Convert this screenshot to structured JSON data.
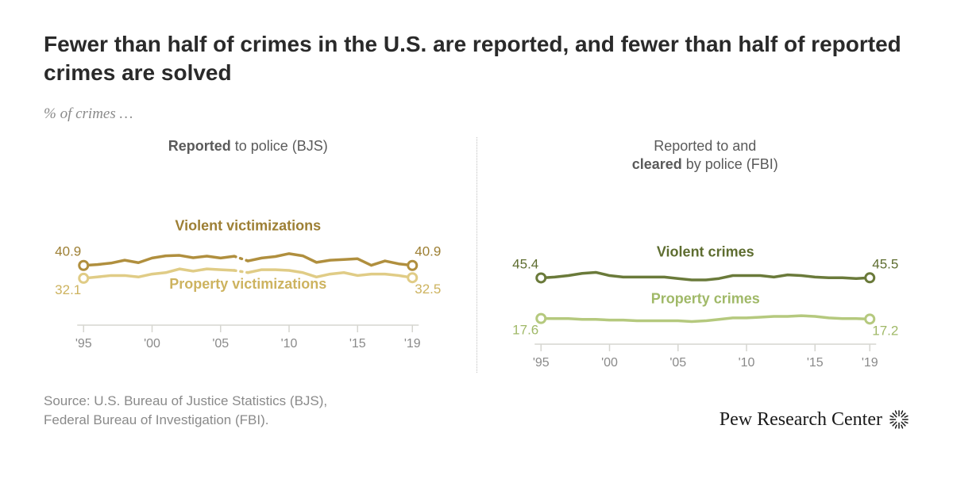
{
  "title": "Fewer than half of crimes in the U.S. are reported, and fewer than half of reported crimes are solved",
  "subtitle": "% of crimes …",
  "source_line1": "Source: U.S. Bureau of Justice Statistics (BJS),",
  "source_line2": "Federal Bureau of Investigation (FBI).",
  "brand": "Pew Research Center",
  "chart": {
    "xmin": 1995,
    "xmax": 2019,
    "ymin": 0,
    "ymax": 100,
    "x_ticks": [
      1995,
      2000,
      2005,
      2010,
      2015,
      2019
    ],
    "x_tick_labels": [
      "'95",
      "'00",
      "'05",
      "'10",
      "'15",
      "'19"
    ],
    "axis_color": "#d6d6d0",
    "tick_label_color": "#8a8a8a",
    "label_fontsize": 16
  },
  "left": {
    "panel_title_pre": "",
    "panel_title_bold": "Reported",
    "panel_title_post": " to police (BJS)",
    "series": [
      {
        "name": "Violent victimizations",
        "color": "#b08f3e",
        "text_color": "#9d7f34",
        "gap": [
          2006,
          2007
        ],
        "values": [
          [
            1995,
            40.9
          ],
          [
            1996,
            41.5
          ],
          [
            1997,
            42.5
          ],
          [
            1998,
            44.5
          ],
          [
            1999,
            42.8
          ],
          [
            2000,
            46.0
          ],
          [
            2001,
            47.5
          ],
          [
            2002,
            47.8
          ],
          [
            2003,
            46.2
          ],
          [
            2004,
            47.3
          ],
          [
            2005,
            46.0
          ],
          [
            2006,
            47.2
          ],
          [
            2007,
            44.0
          ],
          [
            2008,
            46.0
          ],
          [
            2009,
            47.0
          ],
          [
            2010,
            49.0
          ],
          [
            2011,
            47.5
          ],
          [
            2012,
            43.0
          ],
          [
            2013,
            44.5
          ],
          [
            2014,
            45.0
          ],
          [
            2015,
            45.5
          ],
          [
            2016,
            41.0
          ],
          [
            2017,
            44.0
          ],
          [
            2018,
            42.0
          ],
          [
            2019,
            40.9
          ]
        ],
        "start_label": "40.9",
        "end_label": "40.9",
        "label_y": 65
      },
      {
        "name": "Property victimizations",
        "color": "#e0cc86",
        "text_color": "#cdb35f",
        "gap": [
          2006,
          2007
        ],
        "values": [
          [
            1995,
            32.1
          ],
          [
            1996,
            33.0
          ],
          [
            1997,
            34.0
          ],
          [
            1998,
            34.0
          ],
          [
            1999,
            33.0
          ],
          [
            2000,
            35.0
          ],
          [
            2001,
            36.0
          ],
          [
            2002,
            38.5
          ],
          [
            2003,
            37.0
          ],
          [
            2004,
            38.5
          ],
          [
            2005,
            38.0
          ],
          [
            2006,
            37.5
          ],
          [
            2007,
            36.0
          ],
          [
            2008,
            38.0
          ],
          [
            2009,
            38.0
          ],
          [
            2010,
            37.5
          ],
          [
            2011,
            36.0
          ],
          [
            2012,
            33.0
          ],
          [
            2013,
            35.0
          ],
          [
            2014,
            36.0
          ],
          [
            2015,
            34.0
          ],
          [
            2016,
            35.0
          ],
          [
            2017,
            35.0
          ],
          [
            2018,
            34.0
          ],
          [
            2019,
            32.5
          ]
        ],
        "start_label": "32.1",
        "end_label": "32.5",
        "label_y": 25
      }
    ]
  },
  "right": {
    "panel_title_line1": "Reported to and",
    "panel_title_bold": "cleared",
    "panel_title_post": " by police (FBI)",
    "series": [
      {
        "name": "Violent crimes",
        "color": "#6a7a3a",
        "text_color": "#5e6d30",
        "values": [
          [
            1995,
            45.4
          ],
          [
            1996,
            46.0
          ],
          [
            1997,
            47.0
          ],
          [
            1998,
            48.5
          ],
          [
            1999,
            49.2
          ],
          [
            2000,
            47.0
          ],
          [
            2001,
            46.0
          ],
          [
            2002,
            46.0
          ],
          [
            2003,
            46.0
          ],
          [
            2004,
            46.0
          ],
          [
            2005,
            45.0
          ],
          [
            2006,
            44.0
          ],
          [
            2007,
            44.0
          ],
          [
            2008,
            45.0
          ],
          [
            2009,
            47.0
          ],
          [
            2010,
            47.0
          ],
          [
            2011,
            47.0
          ],
          [
            2012,
            46.0
          ],
          [
            2013,
            47.5
          ],
          [
            2014,
            47.0
          ],
          [
            2015,
            46.0
          ],
          [
            2016,
            45.5
          ],
          [
            2017,
            45.5
          ],
          [
            2018,
            45.0
          ],
          [
            2019,
            45.5
          ]
        ],
        "start_label": "45.4",
        "end_label": "45.5",
        "label_y": 60
      },
      {
        "name": "Property crimes",
        "color": "#b5c97e",
        "text_color": "#a0b968",
        "values": [
          [
            1995,
            17.6
          ],
          [
            1996,
            17.5
          ],
          [
            1997,
            17.5
          ],
          [
            1998,
            17.0
          ],
          [
            1999,
            17.0
          ],
          [
            2000,
            16.5
          ],
          [
            2001,
            16.5
          ],
          [
            2002,
            16.0
          ],
          [
            2003,
            16.0
          ],
          [
            2004,
            16.0
          ],
          [
            2005,
            16.0
          ],
          [
            2006,
            15.5
          ],
          [
            2007,
            16.0
          ],
          [
            2008,
            17.0
          ],
          [
            2009,
            18.0
          ],
          [
            2010,
            18.0
          ],
          [
            2011,
            18.5
          ],
          [
            2012,
            19.0
          ],
          [
            2013,
            19.0
          ],
          [
            2014,
            19.5
          ],
          [
            2015,
            19.0
          ],
          [
            2016,
            18.0
          ],
          [
            2017,
            17.5
          ],
          [
            2018,
            17.5
          ],
          [
            2019,
            17.2
          ]
        ],
        "start_label": "17.6",
        "end_label": "17.2",
        "label_y": 28
      }
    ]
  }
}
